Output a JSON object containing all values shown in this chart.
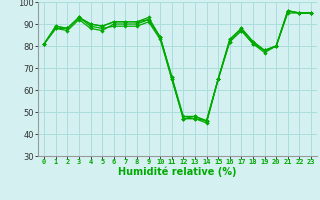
{
  "xlabel": "Humidité relative (%)",
  "background_color": "#d4f0f0",
  "grid_color": "#aadddd",
  "line_color": "#00aa00",
  "ylim": [
    30,
    100
  ],
  "xlim": [
    -0.5,
    23.5
  ],
  "yticks": [
    30,
    40,
    50,
    60,
    70,
    80,
    90,
    100
  ],
  "xticks": [
    0,
    1,
    2,
    3,
    4,
    5,
    6,
    7,
    8,
    9,
    10,
    11,
    12,
    13,
    14,
    15,
    16,
    17,
    18,
    19,
    20,
    21,
    22,
    23
  ],
  "series": [
    [
      81,
      89,
      88,
      93,
      89,
      88,
      89,
      89,
      89,
      91,
      83,
      65,
      47,
      47,
      46,
      65,
      83,
      88,
      82,
      78,
      80,
      96,
      95,
      95
    ],
    [
      81,
      89,
      88,
      93,
      90,
      89,
      91,
      91,
      91,
      92,
      84,
      66,
      48,
      48,
      46,
      65,
      82,
      87,
      81,
      77,
      80,
      96,
      95,
      95
    ],
    [
      81,
      88,
      87,
      92,
      88,
      87,
      90,
      90,
      90,
      92,
      84,
      66,
      47,
      47,
      45,
      65,
      82,
      87,
      81,
      78,
      80,
      95,
      95,
      95
    ],
    [
      81,
      88,
      88,
      93,
      90,
      89,
      91,
      91,
      91,
      93,
      84,
      65,
      47,
      48,
      46,
      65,
      83,
      88,
      82,
      78,
      80,
      96,
      95,
      95
    ]
  ],
  "xtick_fontsize": 5,
  "ytick_fontsize": 6,
  "xlabel_fontsize": 7,
  "linewidth": 0.9,
  "markersize": 2.2
}
